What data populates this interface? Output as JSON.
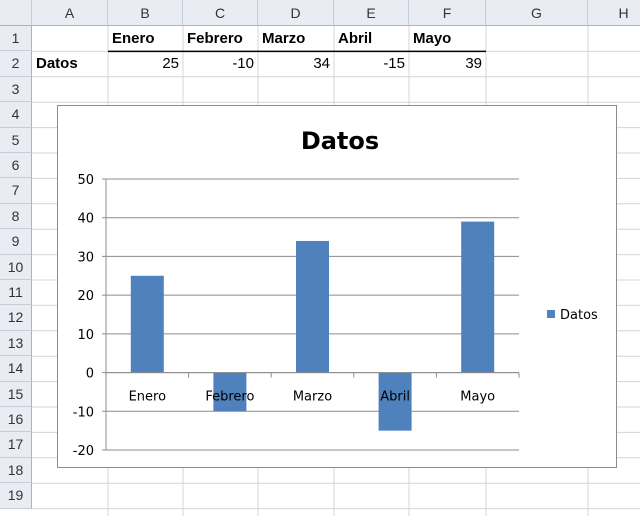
{
  "sheet": {
    "columns": [
      "A",
      "B",
      "C",
      "D",
      "E",
      "F",
      "G",
      "H"
    ],
    "rows": [
      "1",
      "2",
      "3",
      "4",
      "5",
      "6",
      "7",
      "8",
      "9",
      "10",
      "11",
      "12",
      "13",
      "14",
      "15",
      "16",
      "17",
      "18",
      "19"
    ],
    "header_row": [
      "",
      "Enero",
      "Febrero",
      "Marzo",
      "Abril",
      "Mayo"
    ],
    "data_row": [
      "Datos",
      "25",
      "-10",
      "34",
      "-15",
      "39"
    ]
  },
  "chart_data": {
    "type": "bar",
    "title": "Datos",
    "categories": [
      "Enero",
      "Febrero",
      "Marzo",
      "Abril",
      "Mayo"
    ],
    "series": [
      {
        "name": "Datos",
        "values": [
          25,
          -10,
          34,
          -15,
          39
        ],
        "color": "#4f81bd"
      }
    ],
    "ylim": [
      -20,
      50
    ],
    "yticks": [
      "50",
      "40",
      "30",
      "20",
      "10",
      "0",
      "-10",
      "-20"
    ],
    "grid": true,
    "legend": "right"
  }
}
